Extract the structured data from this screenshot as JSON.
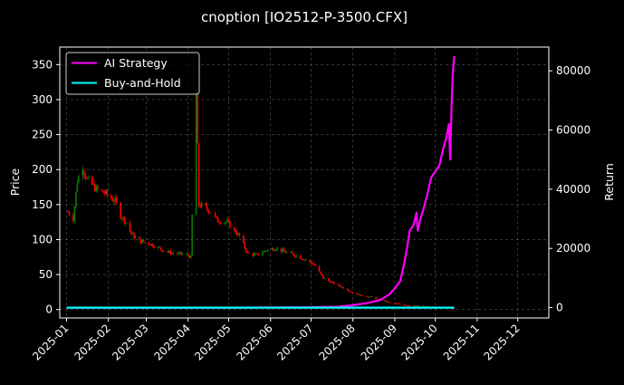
{
  "chart_data": {
    "type": "line",
    "title": "cnoption [IO2512-P-3500.CFX]",
    "xlabel": "",
    "ylabel": "Price",
    "y2label": "Return",
    "x_ticks": [
      "2025-01",
      "2025-02",
      "2025-03",
      "2025-04",
      "2025-05",
      "2025-06",
      "2025-07",
      "2025-08",
      "2025-09",
      "2025-10",
      "2025-11",
      "2025-12"
    ],
    "xlim": [
      "2024-12-27",
      "2025-12-24"
    ],
    "ylim": [
      -12,
      375
    ],
    "y2lim": [
      -3500,
      88000
    ],
    "y_ticks": [
      0,
      50,
      100,
      150,
      200,
      250,
      300,
      350
    ],
    "y2_ticks": [
      0,
      20000,
      40000,
      60000,
      80000
    ],
    "grid": true,
    "legend": {
      "placement": "top-left",
      "entries": [
        "AI Strategy",
        "Buy-and-Hold"
      ]
    },
    "colors": {
      "background": "#000000",
      "ai_strategy": "#ff00ff",
      "buy_and_hold": "#00ffff",
      "candle_up": "#008000",
      "candle_down": "#ff0000",
      "grid": "#555555",
      "frame": "#ffffff"
    },
    "price_anchors": [
      [
        "2025-01-02",
        140
      ],
      [
        "2025-01-06",
        130
      ],
      [
        "2025-01-09",
        185
      ],
      [
        "2025-01-13",
        205
      ],
      [
        "2025-01-16",
        185
      ],
      [
        "2025-01-20",
        178
      ],
      [
        "2025-01-24",
        170
      ],
      [
        "2025-01-28",
        168
      ],
      [
        "2025-02-06",
        155
      ],
      [
        "2025-02-10",
        135
      ],
      [
        "2025-02-14",
        125
      ],
      [
        "2025-02-18",
        108
      ],
      [
        "2025-02-24",
        98
      ],
      [
        "2025-03-03",
        95
      ],
      [
        "2025-03-10",
        88
      ],
      [
        "2025-03-17",
        82
      ],
      [
        "2025-03-24",
        80
      ],
      [
        "2025-03-31",
        78
      ],
      [
        "2025-04-03",
        75
      ],
      [
        "2025-04-07",
        310
      ],
      [
        "2025-04-09",
        150
      ],
      [
        "2025-04-14",
        145
      ],
      [
        "2025-04-18",
        140
      ],
      [
        "2025-04-22",
        128
      ],
      [
        "2025-04-30",
        125
      ],
      [
        "2025-05-09",
        105
      ],
      [
        "2025-05-15",
        80
      ],
      [
        "2025-05-22",
        78
      ],
      [
        "2025-05-29",
        85
      ],
      [
        "2025-06-05",
        88
      ],
      [
        "2025-06-12",
        82
      ],
      [
        "2025-06-19",
        78
      ],
      [
        "2025-06-26",
        72
      ],
      [
        "2025-07-03",
        65
      ],
      [
        "2025-07-10",
        45
      ],
      [
        "2025-07-17",
        38
      ],
      [
        "2025-07-24",
        32
      ],
      [
        "2025-07-31",
        25
      ],
      [
        "2025-08-07",
        20
      ],
      [
        "2025-08-14",
        18
      ],
      [
        "2025-08-21",
        14
      ],
      [
        "2025-08-28",
        10
      ],
      [
        "2025-09-04",
        8
      ],
      [
        "2025-09-11",
        6
      ],
      [
        "2025-09-18",
        5
      ],
      [
        "2025-09-25",
        4
      ],
      [
        "2025-10-01",
        3
      ],
      [
        "2025-10-08",
        3
      ],
      [
        "2025-10-14",
        2
      ]
    ],
    "series": [
      {
        "name": "AI Strategy",
        "points": [
          [
            "2025-01-02",
            0
          ],
          [
            "2025-05-01",
            0
          ],
          [
            "2025-07-01",
            100
          ],
          [
            "2025-07-21",
            300
          ],
          [
            "2025-08-01",
            800
          ],
          [
            "2025-08-11",
            1500
          ],
          [
            "2025-08-21",
            2500
          ],
          [
            "2025-08-28",
            4500
          ],
          [
            "2025-09-01",
            6500
          ],
          [
            "2025-09-05",
            9000
          ],
          [
            "2025-09-08",
            15000
          ],
          [
            "2025-09-10",
            20000
          ],
          [
            "2025-09-12",
            26000
          ],
          [
            "2025-09-15",
            28000
          ],
          [
            "2025-09-17",
            32000
          ],
          [
            "2025-09-18",
            26000
          ],
          [
            "2025-09-20",
            30000
          ],
          [
            "2025-09-22",
            33000
          ],
          [
            "2025-09-25",
            38000
          ],
          [
            "2025-09-28",
            44000
          ],
          [
            "2025-10-01",
            46000
          ],
          [
            "2025-10-04",
            48000
          ],
          [
            "2025-10-07",
            54000
          ],
          [
            "2025-10-09",
            57000
          ],
          [
            "2025-10-11",
            62000
          ],
          [
            "2025-10-12",
            50000
          ],
          [
            "2025-10-13",
            68000
          ],
          [
            "2025-10-14",
            80000
          ],
          [
            "2025-10-15",
            85000
          ]
        ]
      },
      {
        "name": "Buy-and-Hold",
        "points": [
          [
            "2025-01-01",
            0
          ],
          [
            "2025-10-15",
            0
          ]
        ]
      }
    ]
  }
}
